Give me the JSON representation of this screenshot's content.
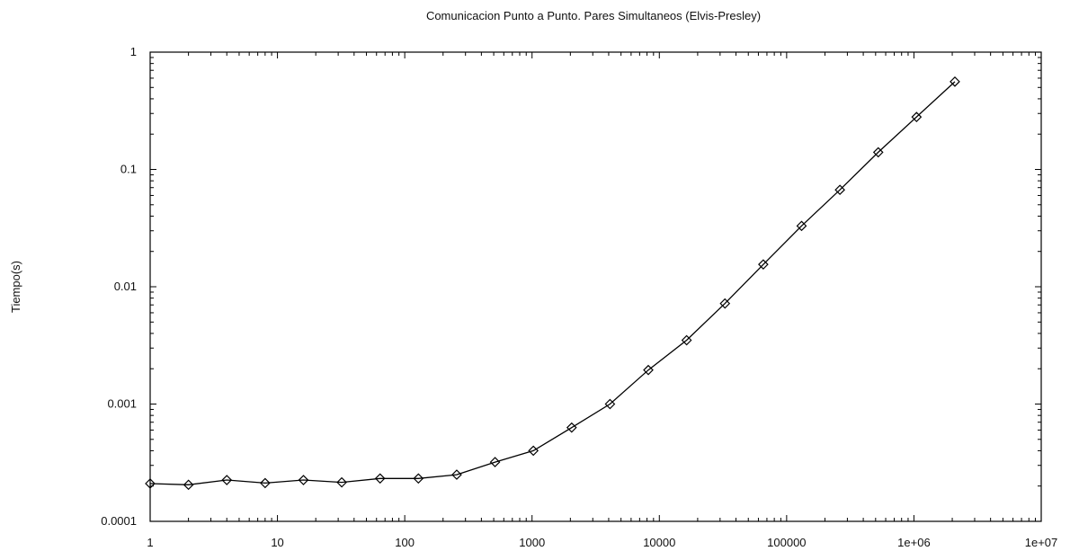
{
  "chart_data": {
    "type": "line",
    "title": "Comunicacion Punto a Punto. Pares Simultaneos (Elvis-Presley)",
    "xlabel": "",
    "ylabel": "Tiempo(s)",
    "x_scale": "log",
    "y_scale": "log",
    "xlim": [
      1,
      10000000
    ],
    "ylim": [
      0.0001,
      1
    ],
    "x_ticks": [
      {
        "value": 1,
        "label": "1"
      },
      {
        "value": 10,
        "label": "10"
      },
      {
        "value": 100,
        "label": "100"
      },
      {
        "value": 1000,
        "label": "1000"
      },
      {
        "value": 10000,
        "label": "10000"
      },
      {
        "value": 100000,
        "label": "100000"
      },
      {
        "value": 1000000,
        "label": "1e+06"
      },
      {
        "value": 10000000,
        "label": "1e+07"
      }
    ],
    "y_ticks": [
      {
        "value": 0.0001,
        "label": "0.0001"
      },
      {
        "value": 0.001,
        "label": "0.001"
      },
      {
        "value": 0.01,
        "label": "0.01"
      },
      {
        "value": 0.1,
        "label": "0.1"
      },
      {
        "value": 1,
        "label": "1"
      }
    ],
    "grid": false,
    "legend": "none",
    "series": [
      {
        "marker": "diamond",
        "color": "#000000",
        "x": [
          1,
          2,
          4,
          8,
          16,
          32,
          64,
          128,
          256,
          512,
          1024,
          2048,
          4096,
          8192,
          16384,
          32768,
          65536,
          131072,
          262144,
          524288,
          1048576,
          2097152
        ],
        "y": [
          0.00021,
          0.000205,
          0.000225,
          0.000212,
          0.000225,
          0.000215,
          0.000232,
          0.000232,
          0.00025,
          0.00032,
          0.0004,
          0.00063,
          0.001,
          0.00195,
          0.0035,
          0.0072,
          0.0155,
          0.033,
          0.067,
          0.14,
          0.28,
          0.56
        ]
      }
    ]
  }
}
